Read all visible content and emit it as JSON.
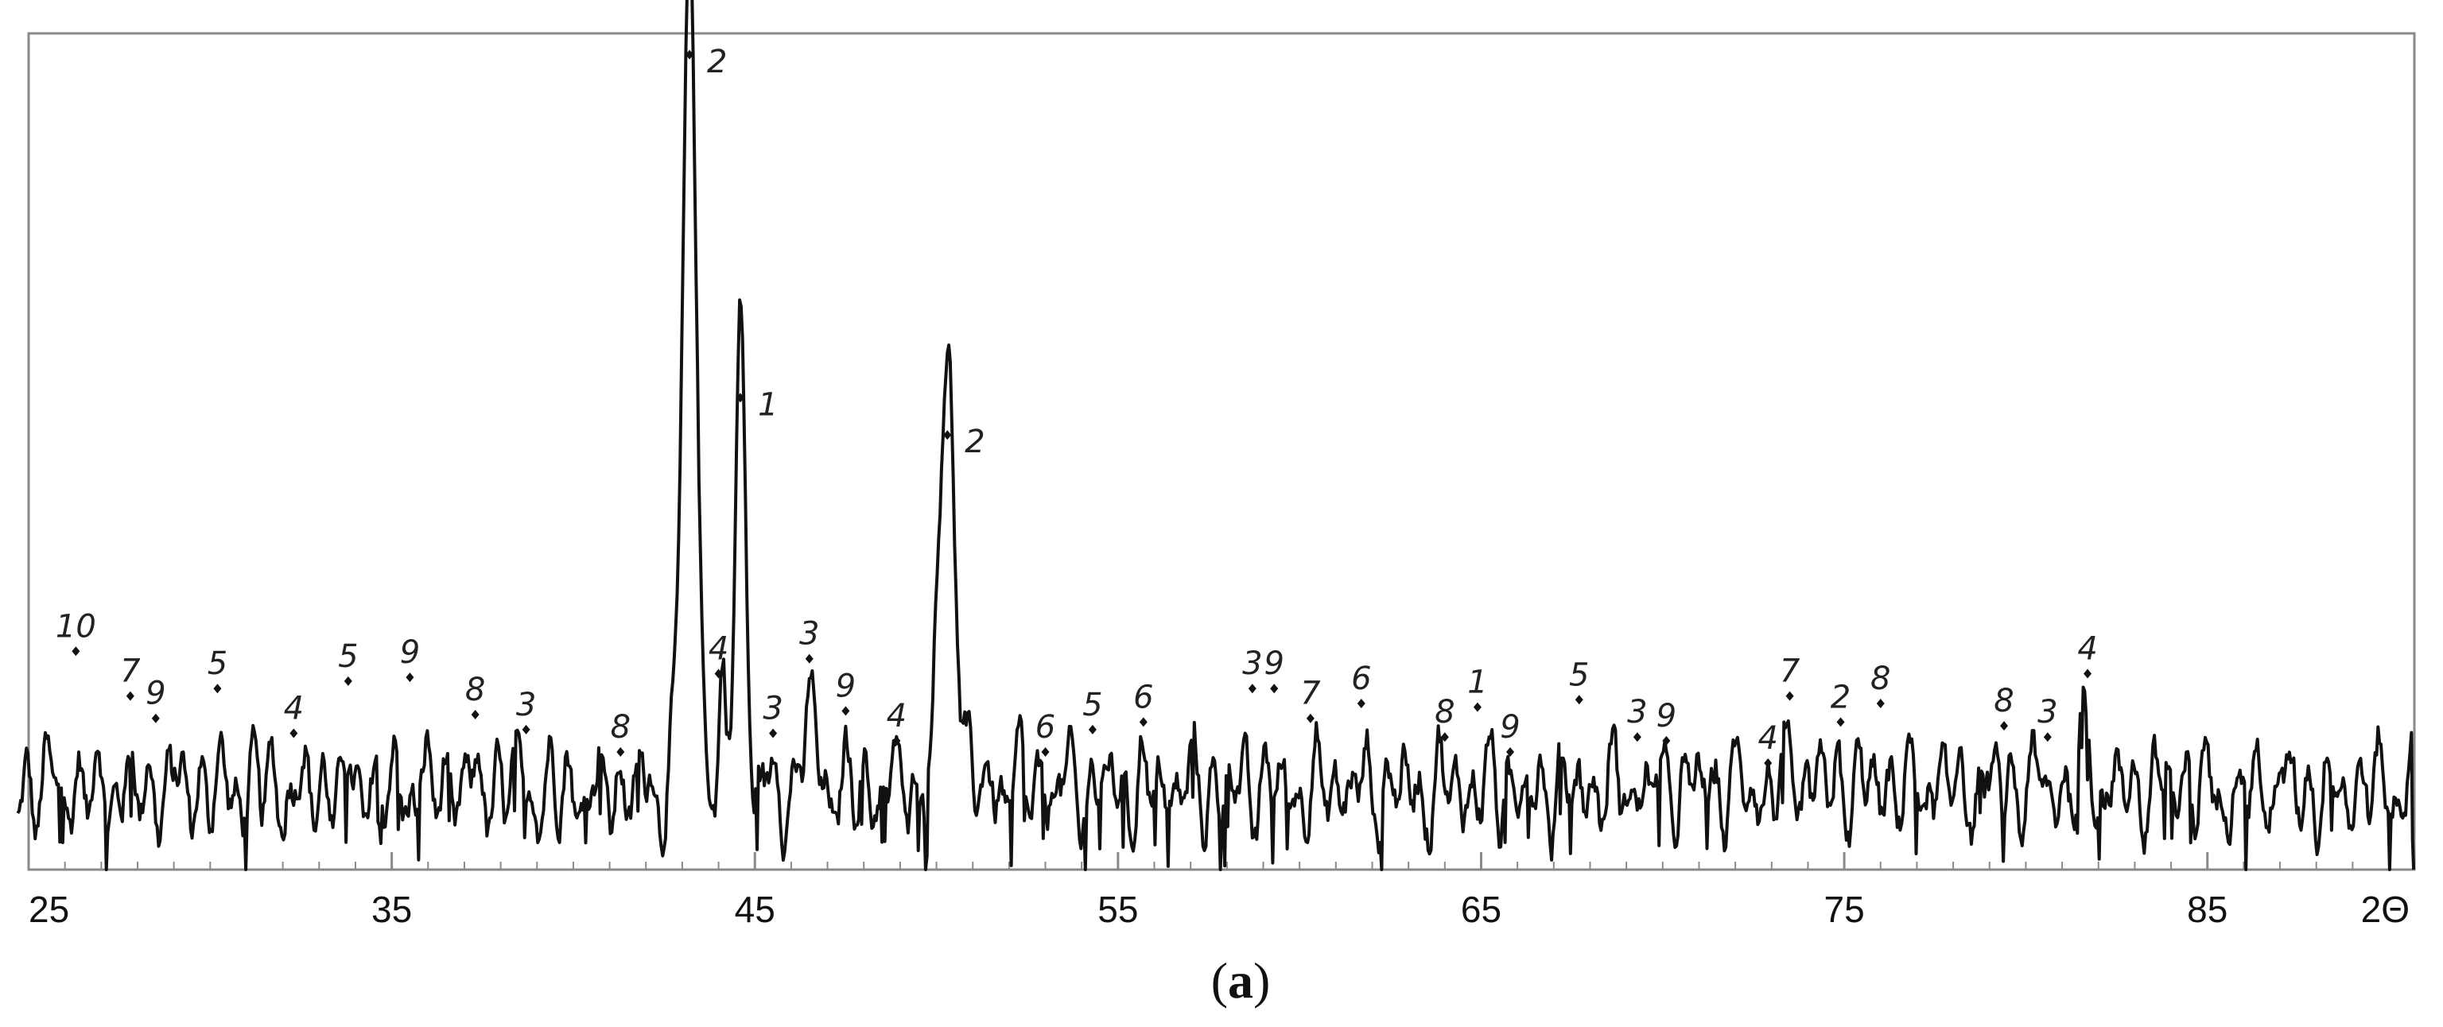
{
  "chart_data": {
    "type": "line",
    "xlabel": "2Θ",
    "ylabel": "",
    "title": "",
    "xlim": [
      25,
      90
    ],
    "ylim": [
      0,
      1100
    ],
    "grid": false,
    "x_ticks": [
      {
        "value": 25,
        "label": "25"
      },
      {
        "value": 35,
        "label": "35"
      },
      {
        "value": 45,
        "label": "45"
      },
      {
        "value": 55,
        "label": "55"
      },
      {
        "value": 65,
        "label": "65"
      },
      {
        "value": 75,
        "label": "75"
      },
      {
        "value": 85,
        "label": "85"
      }
    ],
    "minor_ticks": [
      26,
      27,
      28,
      29,
      30,
      31,
      32,
      33,
      34,
      36,
      37,
      38,
      39,
      40,
      41,
      42,
      43,
      44,
      46,
      47,
      48,
      49,
      50,
      51,
      52,
      53,
      54,
      56,
      57,
      58,
      59,
      60,
      61,
      62,
      63,
      64,
      66,
      67,
      68,
      69,
      70,
      71,
      72,
      73,
      74,
      76,
      77,
      78,
      79,
      80,
      81,
      82,
      83,
      84,
      86,
      87,
      88,
      89
    ],
    "main_peaks": [
      {
        "x": 43.2,
        "y": 1080,
        "width": 0.28
      },
      {
        "x": 44.6,
        "y": 620,
        "width": 0.2
      },
      {
        "x": 50.3,
        "y": 560,
        "width": 0.32
      },
      {
        "x": 46.5,
        "y": 120,
        "width": 0.18
      },
      {
        "x": 44.1,
        "y": 100,
        "width": 0.12
      },
      {
        "x": 81.7,
        "y": 75,
        "width": 0.18
      }
    ],
    "peak_labels": [
      {
        "x": 26.3,
        "y": 280,
        "label": "10"
      },
      {
        "x": 27.8,
        "y": 220,
        "label": "7"
      },
      {
        "x": 28.5,
        "y": 190,
        "label": "9"
      },
      {
        "x": 30.2,
        "y": 230,
        "label": "5"
      },
      {
        "x": 32.3,
        "y": 170,
        "label": "4"
      },
      {
        "x": 33.8,
        "y": 240,
        "label": "5"
      },
      {
        "x": 35.5,
        "y": 245,
        "label": "9"
      },
      {
        "x": 37.3,
        "y": 195,
        "label": "8"
      },
      {
        "x": 38.7,
        "y": 175,
        "label": "3"
      },
      {
        "x": 41.3,
        "y": 145,
        "label": "8"
      },
      {
        "x": 43.2,
        "y": 1080,
        "label": "2"
      },
      {
        "x": 44.0,
        "y": 250,
        "label": "4"
      },
      {
        "x": 44.6,
        "y": 620,
        "label": "1"
      },
      {
        "x": 45.5,
        "y": 170,
        "label": "3"
      },
      {
        "x": 46.5,
        "y": 270,
        "label": "3"
      },
      {
        "x": 47.5,
        "y": 200,
        "label": "9"
      },
      {
        "x": 48.9,
        "y": 160,
        "label": "4"
      },
      {
        "x": 50.3,
        "y": 570,
        "label": "2"
      },
      {
        "x": 53.0,
        "y": 145,
        "label": "6"
      },
      {
        "x": 54.3,
        "y": 175,
        "label": "5"
      },
      {
        "x": 55.7,
        "y": 185,
        "label": "6"
      },
      {
        "x": 58.7,
        "y": 230,
        "label": "3"
      },
      {
        "x": 59.3,
        "y": 230,
        "label": "9"
      },
      {
        "x": 60.3,
        "y": 190,
        "label": "7"
      },
      {
        "x": 61.7,
        "y": 210,
        "label": "6"
      },
      {
        "x": 64.0,
        "y": 165,
        "label": "8"
      },
      {
        "x": 64.9,
        "y": 205,
        "label": "1"
      },
      {
        "x": 65.8,
        "y": 145,
        "label": "9"
      },
      {
        "x": 67.7,
        "y": 215,
        "label": "5"
      },
      {
        "x": 69.3,
        "y": 165,
        "label": "3"
      },
      {
        "x": 70.1,
        "y": 160,
        "label": "9"
      },
      {
        "x": 72.9,
        "y": 130,
        "label": "4"
      },
      {
        "x": 73.5,
        "y": 220,
        "label": "7"
      },
      {
        "x": 74.9,
        "y": 185,
        "label": "2"
      },
      {
        "x": 76.0,
        "y": 210,
        "label": "8"
      },
      {
        "x": 79.4,
        "y": 180,
        "label": "8"
      },
      {
        "x": 80.6,
        "y": 165,
        "label": "3"
      },
      {
        "x": 81.7,
        "y": 250,
        "label": "4"
      }
    ]
  },
  "caption": {
    "open": "(",
    "letter": "a",
    "close": ")"
  }
}
